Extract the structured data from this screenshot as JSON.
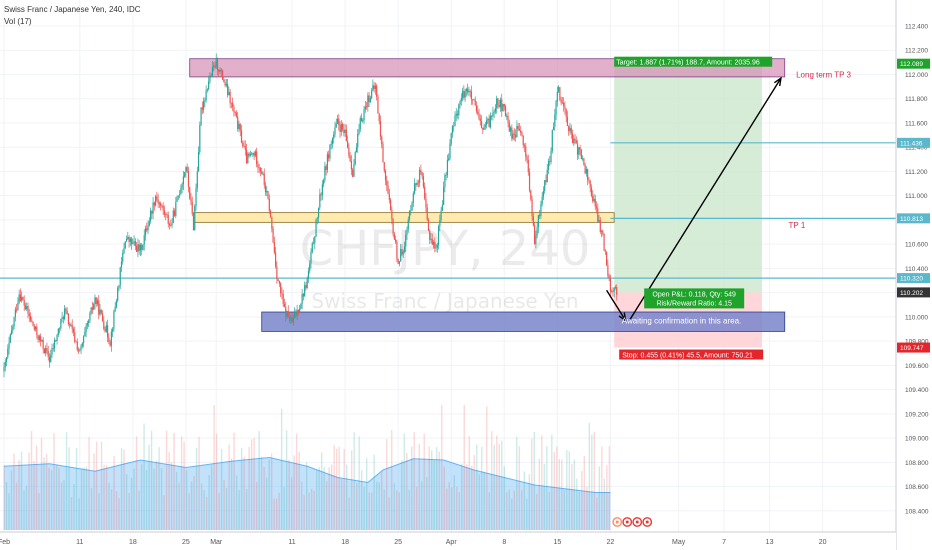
{
  "header": {
    "symbol_line": "Swiss Franc / Japanese Yen, 240, IDC",
    "volume_line": "Vol (17)"
  },
  "watermark": {
    "ticker": "CHFJPY, 240",
    "name": "Swiss Franc / Japanese Yen"
  },
  "colors": {
    "up": "#26a69a",
    "down": "#ef5350",
    "volume_area": "#90caf9",
    "target_zone": "#c8e6c9",
    "stop_zone": "#ffcdd2",
    "resistance_box": "#d58fb4",
    "mid_box": "#ffe9a6",
    "support_box": "#7986cb",
    "level_line": "#5bb8cc",
    "price_tag_green": "#1fa32b",
    "price_tag_red": "#e3262b",
    "price_tag_teal": "#5bb8cc",
    "label_red": "#d32f4f"
  },
  "chart_data": {
    "type": "candlestick",
    "title": "Swiss Franc / Japanese Yen, 240, IDC",
    "y_axis": {
      "min": 108.3,
      "max": 112.55,
      "ticks": [
        112.4,
        112.2,
        112.0,
        111.8,
        111.6,
        111.4,
        111.2,
        111.0,
        110.8,
        110.6,
        110.4,
        110.2,
        110.0,
        109.8,
        109.6,
        109.4,
        109.2,
        109.0,
        108.8,
        108.6,
        108.4
      ],
      "tick_labels": [
        "112.400",
        "112.200",
        "112.000",
        "111.800",
        "111.600",
        "111.400",
        "111.200",
        "111.000",
        "110.800",
        "110.600",
        "110.400",
        "110.200",
        "110.000",
        "109.800",
        "109.600",
        "109.400",
        "109.200",
        "109.000",
        "108.800",
        "108.600",
        "108.400"
      ]
    },
    "x_axis": {
      "labels": [
        {
          "text": "Feb",
          "day": 0
        },
        {
          "text": "11",
          "day": 10
        },
        {
          "text": "18",
          "day": 17
        },
        {
          "text": "25",
          "day": 24
        },
        {
          "text": "Mar",
          "day": 28
        },
        {
          "text": "11",
          "day": 38
        },
        {
          "text": "18",
          "day": 45
        },
        {
          "text": "25",
          "day": 52
        },
        {
          "text": "Apr",
          "day": 59
        },
        {
          "text": "8",
          "day": 66
        },
        {
          "text": "15",
          "day": 73
        },
        {
          "text": "22",
          "day": 80
        },
        {
          "text": "May",
          "day": 89
        },
        {
          "text": "7",
          "day": 95
        },
        {
          "text": "13",
          "day": 101
        },
        {
          "text": "20",
          "day": 108
        }
      ]
    },
    "price_path": [
      [
        0,
        109.55
      ],
      [
        2,
        110.2
      ],
      [
        4,
        109.9
      ],
      [
        6,
        109.65
      ],
      [
        8,
        110.05
      ],
      [
        10,
        109.7
      ],
      [
        12,
        110.15
      ],
      [
        14,
        109.8
      ],
      [
        16,
        110.65
      ],
      [
        18,
        110.55
      ],
      [
        20,
        111.0
      ],
      [
        22,
        110.75
      ],
      [
        24,
        111.25
      ],
      [
        25,
        110.75
      ],
      [
        26,
        111.7
      ],
      [
        27,
        111.95
      ],
      [
        28,
        112.1
      ],
      [
        29,
        111.95
      ],
      [
        30,
        111.75
      ],
      [
        31,
        111.55
      ],
      [
        32,
        111.3
      ],
      [
        33,
        111.35
      ],
      [
        34,
        111.2
      ],
      [
        35,
        110.9
      ],
      [
        36,
        110.35
      ],
      [
        37,
        110.05
      ],
      [
        38,
        109.95
      ],
      [
        39,
        110.1
      ],
      [
        40,
        110.3
      ],
      [
        41,
        110.7
      ],
      [
        42,
        111.1
      ],
      [
        43,
        111.4
      ],
      [
        44,
        111.6
      ],
      [
        45,
        111.5
      ],
      [
        46,
        111.2
      ],
      [
        47,
        111.6
      ],
      [
        48,
        111.8
      ],
      [
        49,
        111.9
      ],
      [
        50,
        111.3
      ],
      [
        51,
        110.85
      ],
      [
        52,
        110.45
      ],
      [
        53,
        110.65
      ],
      [
        54,
        111.05
      ],
      [
        55,
        111.2
      ],
      [
        56,
        110.7
      ],
      [
        57,
        110.55
      ],
      [
        58,
        111.05
      ],
      [
        59,
        111.5
      ],
      [
        60,
        111.75
      ],
      [
        61,
        111.9
      ],
      [
        62,
        111.75
      ],
      [
        63,
        111.55
      ],
      [
        64,
        111.6
      ],
      [
        65,
        111.8
      ],
      [
        66,
        111.7
      ],
      [
        67,
        111.5
      ],
      [
        68,
        111.55
      ],
      [
        69,
        111.3
      ],
      [
        70,
        110.6
      ],
      [
        71,
        111.0
      ],
      [
        72,
        111.3
      ],
      [
        73,
        111.9
      ],
      [
        74,
        111.7
      ],
      [
        75,
        111.45
      ],
      [
        76,
        111.35
      ],
      [
        77,
        111.15
      ],
      [
        78,
        110.9
      ],
      [
        79,
        110.65
      ],
      [
        80,
        110.25
      ],
      [
        81,
        110.2
      ]
    ],
    "current_price": 110.202,
    "price_tags": [
      {
        "value": 112.089,
        "label": "112.089",
        "color": "#1fa32b"
      },
      {
        "value": 111.436,
        "label": "111.436",
        "color": "#5bb8cc"
      },
      {
        "value": 110.813,
        "label": "110.813",
        "color": "#5bb8cc"
      },
      {
        "value": 110.32,
        "label": "110.320",
        "color": "#5bb8cc"
      },
      {
        "value": 110.202,
        "label": "110.202",
        "color": "#333333"
      },
      {
        "value": 109.747,
        "label": "109.747",
        "color": "#e3262b"
      }
    ],
    "horizontal_lines": [
      {
        "value": 111.436,
        "from_day": 80
      },
      {
        "value": 110.813,
        "from_day": 80
      },
      {
        "value": 110.32,
        "from_day": -2
      }
    ],
    "zones": [
      {
        "name": "resistance",
        "top": 112.13,
        "bottom": 111.98,
        "from_day": 24.5,
        "to_day": 103
      },
      {
        "name": "mid",
        "top": 110.86,
        "bottom": 110.78,
        "from_day": 25,
        "to_day": 80.5
      },
      {
        "name": "support",
        "top": 110.04,
        "bottom": 109.88,
        "from_day": 34,
        "to_day": 103
      },
      {
        "name": "target",
        "top": 112.089,
        "bottom": 110.202,
        "from_day": 80.5,
        "to_day": 100
      },
      {
        "name": "stop",
        "top": 110.202,
        "bottom": 109.747,
        "from_day": 80.5,
        "to_day": 100
      }
    ],
    "position": {
      "entry": 110.202,
      "target": 112.089,
      "stop": 109.747,
      "target_label": "Target: 1.887 (1.71%) 188.7, Amount: 2035.96",
      "pnl_label": "Open P&L: 0.118, Qty: 549",
      "ratio_label": "Risk/Reward Ratio: 4.15",
      "stop_label": "Stop: 0.455 (0.41%) 45.5, Amount: 750.21"
    },
    "arrows": [
      {
        "from": [
          79.5,
          110.22
        ],
        "to": [
          82,
          109.97
        ]
      },
      {
        "from": [
          82.5,
          109.97
        ],
        "to": [
          102.5,
          111.97
        ]
      }
    ],
    "annotations": [
      {
        "text": "Long term TP 3",
        "day": 104.5,
        "value": 112.0
      },
      {
        "text": "TP 1",
        "day": 103.5,
        "value": 110.76
      },
      {
        "text": "Awaiting confirmation in this area.",
        "day": 81.5,
        "value": 109.97
      }
    ],
    "volume_line": [
      [
        0,
        0.51
      ],
      [
        6,
        0.53
      ],
      [
        12,
        0.47
      ],
      [
        18,
        0.56
      ],
      [
        24,
        0.5
      ],
      [
        30,
        0.55
      ],
      [
        35,
        0.58
      ],
      [
        40,
        0.51
      ],
      [
        44,
        0.42
      ],
      [
        48,
        0.38
      ],
      [
        50,
        0.48
      ],
      [
        54,
        0.57
      ],
      [
        58,
        0.56
      ],
      [
        62,
        0.48
      ],
      [
        66,
        0.42
      ],
      [
        70,
        0.36
      ],
      [
        74,
        0.33
      ],
      [
        78,
        0.3
      ],
      [
        80,
        0.3
      ]
    ]
  }
}
